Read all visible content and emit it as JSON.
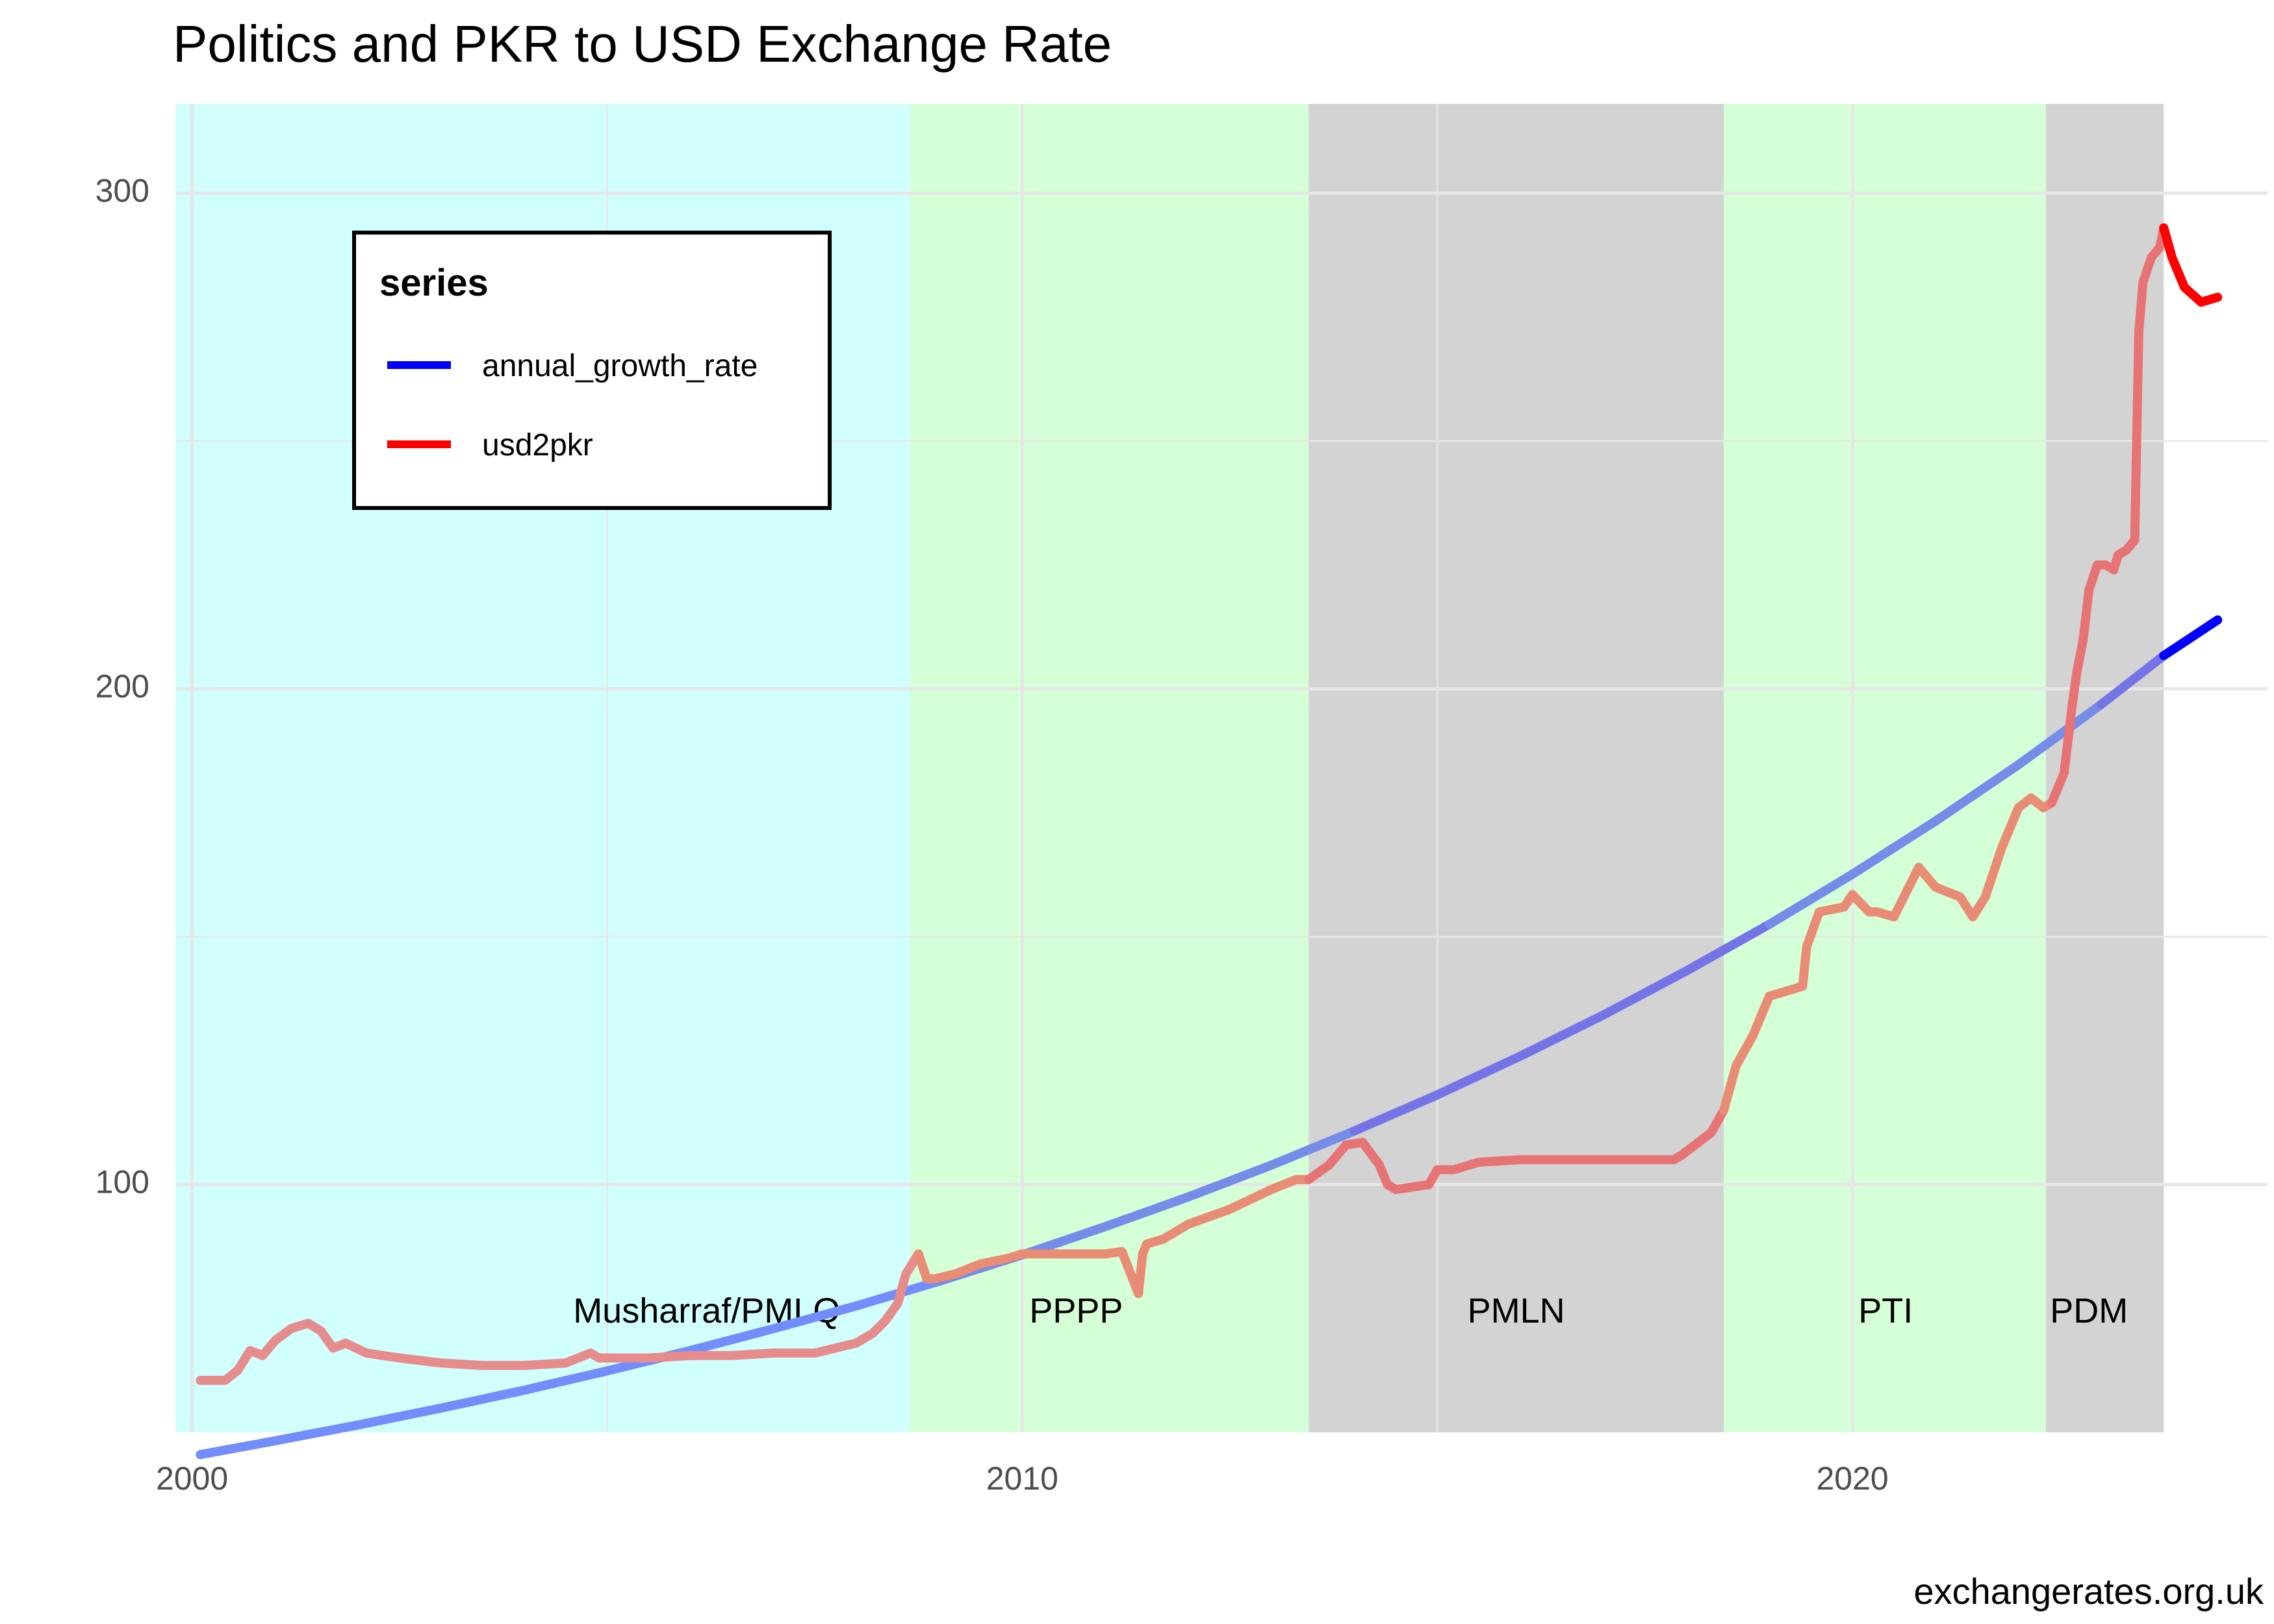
{
  "chart_data": {
    "type": "line",
    "title": "Politics and PKR to USD Exchange Rate",
    "caption": "exchangerates.org.uk",
    "xlabel": "",
    "ylabel": "",
    "xlim": [
      1999.8,
      2025.0
    ],
    "ylim": [
      50,
      318
    ],
    "x_ticks": [
      {
        "value": 2000,
        "label": "2000"
      },
      {
        "value": 2010,
        "label": "2010"
      },
      {
        "value": 2020,
        "label": "2020"
      }
    ],
    "y_ticks": [
      {
        "value": 100,
        "label": "100"
      },
      {
        "value": 200,
        "label": "200"
      },
      {
        "value": 300,
        "label": "300"
      }
    ],
    "grid": true,
    "legend": {
      "title": "series",
      "placement": "top-left",
      "entries": [
        {
          "name": "annual_growth_rate",
          "color": "#0000ff"
        },
        {
          "name": "usd2pkr",
          "color": "#ff0000"
        }
      ]
    },
    "periods": [
      {
        "name": "Musharraf/PMLQ",
        "start": 1999.8,
        "end": 2008.65,
        "color": "#d1fffe",
        "label_x": 2006.2,
        "label_y": 74
      },
      {
        "name": "PPPP",
        "start": 2008.65,
        "end": 2013.45,
        "color": "#d5ffd6",
        "label_x": 2010.65,
        "label_y": 74
      },
      {
        "name": "PMLN",
        "start": 2013.45,
        "end": 2018.45,
        "color": "#d3d3d3",
        "label_x": 2015.95,
        "label_y": 74
      },
      {
        "name": "PTI",
        "start": 2018.45,
        "end": 2022.33,
        "color": "#d5ffd6",
        "label_x": 2020.4,
        "label_y": 74
      },
      {
        "name": "PDM",
        "start": 2022.33,
        "end": 2023.75,
        "color": "#d3d3d3",
        "label_x": 2022.85,
        "label_y": 74
      }
    ],
    "series": [
      {
        "name": "annual_growth_rate",
        "color": "#0000ff",
        "x": [
          2000.1,
          2001,
          2002,
          2003,
          2004,
          2005,
          2006,
          2007,
          2008,
          2009,
          2010,
          2011,
          2012,
          2013,
          2014,
          2015,
          2016,
          2017,
          2018,
          2019,
          2020,
          2021,
          2022,
          2023,
          2023.75,
          2024.4
        ],
        "values": [
          45.5,
          48.3,
          51.5,
          54.9,
          58.5,
          62.4,
          66.5,
          70.9,
          75.5,
          80.5,
          85.8,
          91.5,
          97.5,
          103.9,
          110.8,
          118.1,
          125.9,
          134.2,
          143.1,
          152.5,
          162.6,
          173.3,
          184.7,
          196.9,
          206.7,
          213.9
        ]
      },
      {
        "name": "usd2pkr",
        "color": "#ff0000",
        "x": [
          2000.1,
          2000.4,
          2000.55,
          2000.7,
          2000.85,
          2001.0,
          2001.2,
          2001.4,
          2001.55,
          2001.7,
          2001.85,
          2002.1,
          2002.5,
          2003.0,
          2003.5,
          2004.0,
          2004.5,
          2004.8,
          2004.9,
          2005.0,
          2005.5,
          2006.0,
          2006.5,
          2007.0,
          2007.5,
          2008.0,
          2008.2,
          2008.35,
          2008.5,
          2008.6,
          2008.75,
          2008.85,
          2008.95,
          2009.2,
          2009.5,
          2009.8,
          2010.0,
          2010.5,
          2011.0,
          2011.2,
          2011.4,
          2011.45,
          2011.5,
          2011.7,
          2012.0,
          2012.5,
          2013.0,
          2013.3,
          2013.45,
          2013.7,
          2013.9,
          2014.1,
          2014.3,
          2014.4,
          2014.5,
          2014.9,
          2015.0,
          2015.2,
          2015.5,
          2016.0,
          2016.5,
          2017.0,
          2017.5,
          2017.85,
          2017.95,
          2018.3,
          2018.45,
          2018.6,
          2018.8,
          2019.0,
          2019.2,
          2019.4,
          2019.45,
          2019.6,
          2019.9,
          2020.0,
          2020.2,
          2020.3,
          2020.5,
          2020.8,
          2021.0,
          2021.3,
          2021.45,
          2021.6,
          2021.8,
          2022.0,
          2022.15,
          2022.3,
          2022.4,
          2022.55,
          2022.6,
          2022.65,
          2022.7,
          2022.78,
          2022.85,
          2022.95,
          2023.05,
          2023.15,
          2023.2,
          2023.3,
          2023.4,
          2023.45,
          2023.5,
          2023.6,
          2023.7,
          2023.75,
          2023.85,
          2023.95,
          2024.0,
          2024.2,
          2024.4
        ],
        "values": [
          60.5,
          60.5,
          62.5,
          66.5,
          65.5,
          68.5,
          71.0,
          72.0,
          70.5,
          67.0,
          68.0,
          66.0,
          65.0,
          64.0,
          63.5,
          63.5,
          64.0,
          66.0,
          65.0,
          65.0,
          65.0,
          65.5,
          65.5,
          66.0,
          66.0,
          68.0,
          70.0,
          72.5,
          76.0,
          82.0,
          86.0,
          81.0,
          81.0,
          82.0,
          84.0,
          85.0,
          86.0,
          86.0,
          86.0,
          86.5,
          78.0,
          86.0,
          88.0,
          89.0,
          92.0,
          95.0,
          99.0,
          101.0,
          101.0,
          104.0,
          108.0,
          108.5,
          104.0,
          100.0,
          99.0,
          100.0,
          103.0,
          103.0,
          104.5,
          105.0,
          105.0,
          105.0,
          105.0,
          105.0,
          106.0,
          110.5,
          115.0,
          124.0,
          130.0,
          138.0,
          139.0,
          140.0,
          148.0,
          155.0,
          156.0,
          158.5,
          155.0,
          155.0,
          154.0,
          164.0,
          160.0,
          158.0,
          154.0,
          158.0,
          168.0,
          176.0,
          178.0,
          176.0,
          177.0,
          183.0,
          190.0,
          197.0,
          203.0,
          210.0,
          220.0,
          225.0,
          225.0,
          224.0,
          227.0,
          228.0,
          230.0,
          272.0,
          282.0,
          287.0,
          289.0,
          293.0,
          287.0,
          283.0,
          281.0,
          278.0,
          279.0
        ]
      }
    ]
  }
}
